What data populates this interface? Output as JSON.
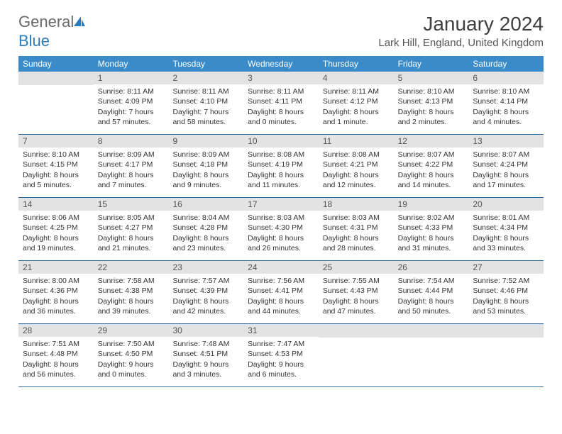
{
  "logo": {
    "general": "General",
    "blue": "Blue"
  },
  "title": "January 2024",
  "location": "Lark Hill, England, United Kingdom",
  "colors": {
    "header_bg": "#3b8bc9",
    "daynum_bg": "#e3e3e3",
    "week_border": "#2b6aa0",
    "text": "#333333",
    "title_text": "#404040"
  },
  "day_headers": [
    "Sunday",
    "Monday",
    "Tuesday",
    "Wednesday",
    "Thursday",
    "Friday",
    "Saturday"
  ],
  "weeks": [
    [
      {
        "n": "",
        "sunrise": "",
        "sunset": "",
        "daylight": ""
      },
      {
        "n": "1",
        "sunrise": "Sunrise: 8:11 AM",
        "sunset": "Sunset: 4:09 PM",
        "daylight": "Daylight: 7 hours and 57 minutes."
      },
      {
        "n": "2",
        "sunrise": "Sunrise: 8:11 AM",
        "sunset": "Sunset: 4:10 PM",
        "daylight": "Daylight: 7 hours and 58 minutes."
      },
      {
        "n": "3",
        "sunrise": "Sunrise: 8:11 AM",
        "sunset": "Sunset: 4:11 PM",
        "daylight": "Daylight: 8 hours and 0 minutes."
      },
      {
        "n": "4",
        "sunrise": "Sunrise: 8:11 AM",
        "sunset": "Sunset: 4:12 PM",
        "daylight": "Daylight: 8 hours and 1 minute."
      },
      {
        "n": "5",
        "sunrise": "Sunrise: 8:10 AM",
        "sunset": "Sunset: 4:13 PM",
        "daylight": "Daylight: 8 hours and 2 minutes."
      },
      {
        "n": "6",
        "sunrise": "Sunrise: 8:10 AM",
        "sunset": "Sunset: 4:14 PM",
        "daylight": "Daylight: 8 hours and 4 minutes."
      }
    ],
    [
      {
        "n": "7",
        "sunrise": "Sunrise: 8:10 AM",
        "sunset": "Sunset: 4:15 PM",
        "daylight": "Daylight: 8 hours and 5 minutes."
      },
      {
        "n": "8",
        "sunrise": "Sunrise: 8:09 AM",
        "sunset": "Sunset: 4:17 PM",
        "daylight": "Daylight: 8 hours and 7 minutes."
      },
      {
        "n": "9",
        "sunrise": "Sunrise: 8:09 AM",
        "sunset": "Sunset: 4:18 PM",
        "daylight": "Daylight: 8 hours and 9 minutes."
      },
      {
        "n": "10",
        "sunrise": "Sunrise: 8:08 AM",
        "sunset": "Sunset: 4:19 PM",
        "daylight": "Daylight: 8 hours and 11 minutes."
      },
      {
        "n": "11",
        "sunrise": "Sunrise: 8:08 AM",
        "sunset": "Sunset: 4:21 PM",
        "daylight": "Daylight: 8 hours and 12 minutes."
      },
      {
        "n": "12",
        "sunrise": "Sunrise: 8:07 AM",
        "sunset": "Sunset: 4:22 PM",
        "daylight": "Daylight: 8 hours and 14 minutes."
      },
      {
        "n": "13",
        "sunrise": "Sunrise: 8:07 AM",
        "sunset": "Sunset: 4:24 PM",
        "daylight": "Daylight: 8 hours and 17 minutes."
      }
    ],
    [
      {
        "n": "14",
        "sunrise": "Sunrise: 8:06 AM",
        "sunset": "Sunset: 4:25 PM",
        "daylight": "Daylight: 8 hours and 19 minutes."
      },
      {
        "n": "15",
        "sunrise": "Sunrise: 8:05 AM",
        "sunset": "Sunset: 4:27 PM",
        "daylight": "Daylight: 8 hours and 21 minutes."
      },
      {
        "n": "16",
        "sunrise": "Sunrise: 8:04 AM",
        "sunset": "Sunset: 4:28 PM",
        "daylight": "Daylight: 8 hours and 23 minutes."
      },
      {
        "n": "17",
        "sunrise": "Sunrise: 8:03 AM",
        "sunset": "Sunset: 4:30 PM",
        "daylight": "Daylight: 8 hours and 26 minutes."
      },
      {
        "n": "18",
        "sunrise": "Sunrise: 8:03 AM",
        "sunset": "Sunset: 4:31 PM",
        "daylight": "Daylight: 8 hours and 28 minutes."
      },
      {
        "n": "19",
        "sunrise": "Sunrise: 8:02 AM",
        "sunset": "Sunset: 4:33 PM",
        "daylight": "Daylight: 8 hours and 31 minutes."
      },
      {
        "n": "20",
        "sunrise": "Sunrise: 8:01 AM",
        "sunset": "Sunset: 4:34 PM",
        "daylight": "Daylight: 8 hours and 33 minutes."
      }
    ],
    [
      {
        "n": "21",
        "sunrise": "Sunrise: 8:00 AM",
        "sunset": "Sunset: 4:36 PM",
        "daylight": "Daylight: 8 hours and 36 minutes."
      },
      {
        "n": "22",
        "sunrise": "Sunrise: 7:58 AM",
        "sunset": "Sunset: 4:38 PM",
        "daylight": "Daylight: 8 hours and 39 minutes."
      },
      {
        "n": "23",
        "sunrise": "Sunrise: 7:57 AM",
        "sunset": "Sunset: 4:39 PM",
        "daylight": "Daylight: 8 hours and 42 minutes."
      },
      {
        "n": "24",
        "sunrise": "Sunrise: 7:56 AM",
        "sunset": "Sunset: 4:41 PM",
        "daylight": "Daylight: 8 hours and 44 minutes."
      },
      {
        "n": "25",
        "sunrise": "Sunrise: 7:55 AM",
        "sunset": "Sunset: 4:43 PM",
        "daylight": "Daylight: 8 hours and 47 minutes."
      },
      {
        "n": "26",
        "sunrise": "Sunrise: 7:54 AM",
        "sunset": "Sunset: 4:44 PM",
        "daylight": "Daylight: 8 hours and 50 minutes."
      },
      {
        "n": "27",
        "sunrise": "Sunrise: 7:52 AM",
        "sunset": "Sunset: 4:46 PM",
        "daylight": "Daylight: 8 hours and 53 minutes."
      }
    ],
    [
      {
        "n": "28",
        "sunrise": "Sunrise: 7:51 AM",
        "sunset": "Sunset: 4:48 PM",
        "daylight": "Daylight: 8 hours and 56 minutes."
      },
      {
        "n": "29",
        "sunrise": "Sunrise: 7:50 AM",
        "sunset": "Sunset: 4:50 PM",
        "daylight": "Daylight: 9 hours and 0 minutes."
      },
      {
        "n": "30",
        "sunrise": "Sunrise: 7:48 AM",
        "sunset": "Sunset: 4:51 PM",
        "daylight": "Daylight: 9 hours and 3 minutes."
      },
      {
        "n": "31",
        "sunrise": "Sunrise: 7:47 AM",
        "sunset": "Sunset: 4:53 PM",
        "daylight": "Daylight: 9 hours and 6 minutes."
      },
      {
        "n": "",
        "sunrise": "",
        "sunset": "",
        "daylight": ""
      },
      {
        "n": "",
        "sunrise": "",
        "sunset": "",
        "daylight": ""
      },
      {
        "n": "",
        "sunrise": "",
        "sunset": "",
        "daylight": ""
      }
    ]
  ]
}
